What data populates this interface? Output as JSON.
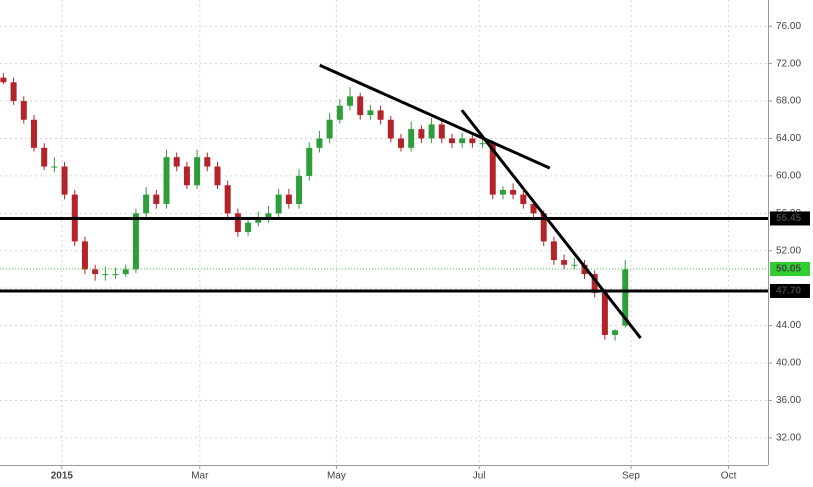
{
  "chart_data": {
    "type": "candlestick",
    "x": [
      0,
      3,
      6,
      9,
      12,
      15,
      18,
      21,
      24,
      27,
      30,
      33,
      36,
      39,
      42,
      45,
      48,
      51,
      54,
      57,
      60,
      63,
      66,
      69,
      72,
      75,
      78,
      81,
      84,
      87,
      90,
      93,
      96,
      99,
      102,
      105,
      108,
      111,
      114,
      117,
      120,
      123,
      126,
      129,
      132,
      135,
      138,
      141,
      144,
      147,
      150,
      153,
      156,
      159,
      162,
      165,
      168,
      171,
      174,
      177,
      180,
      183
    ],
    "open": [
      70.5,
      70,
      68,
      66,
      63,
      61,
      61,
      58,
      53,
      50,
      49.5,
      49.5,
      49.5,
      50,
      56,
      58,
      57,
      62,
      61,
      59,
      62,
      61,
      59,
      56,
      54,
      55,
      55.5,
      56,
      58,
      57,
      60,
      63,
      64,
      66,
      67.5,
      68.5,
      66.5,
      67,
      66,
      64,
      63,
      65,
      64,
      65.5,
      64,
      63.5,
      64,
      63.5,
      63.5,
      58,
      58.5,
      58,
      57,
      56,
      53,
      51,
      50.5,
      50.5,
      49.5,
      47.5,
      43,
      44
    ],
    "high": [
      71,
      70.5,
      68.5,
      66.5,
      63.5,
      62,
      61.5,
      58.5,
      53.5,
      50.5,
      50.3,
      50.2,
      50.5,
      56.5,
      58.8,
      58.5,
      62.8,
      62.5,
      61.5,
      62.8,
      62.5,
      61.5,
      59.5,
      56.5,
      55.5,
      56.2,
      56.8,
      58.6,
      58.6,
      60.7,
      63.6,
      64.8,
      66.7,
      68.2,
      69.5,
      68.9,
      67.6,
      67.5,
      66.4,
      64.5,
      65.8,
      65.4,
      66.2,
      65.9,
      64.5,
      64.6,
      64.5,
      64.2,
      63.8,
      58.9,
      59.2,
      58.4,
      57.5,
      56.3,
      53.5,
      51.6,
      51.2,
      51,
      49.9,
      47.9,
      43.6,
      51
    ],
    "low": [
      69.8,
      67.6,
      65.6,
      62.6,
      60.6,
      60.4,
      57.5,
      52.5,
      49.5,
      48.8,
      48.8,
      49,
      49.2,
      49.6,
      55.6,
      56.5,
      56.5,
      60.5,
      58.6,
      58.6,
      60.5,
      58.6,
      55.5,
      53.5,
      53.6,
      54.6,
      55,
      55.5,
      56.5,
      56.5,
      59.5,
      62.5,
      63.5,
      65.6,
      67,
      66,
      66,
      65.5,
      63.6,
      62.6,
      62.6,
      63.5,
      63.5,
      63.5,
      63,
      63,
      63,
      63,
      57.5,
      57.5,
      57.5,
      56.5,
      55.5,
      52.5,
      50.5,
      50,
      50,
      49,
      47,
      42.5,
      42.4,
      43.8
    ],
    "close": [
      70,
      68,
      66,
      63,
      61,
      61,
      58,
      53,
      50,
      49.5,
      49.5,
      49.5,
      50,
      56,
      58,
      57,
      62,
      61,
      59,
      62,
      61,
      59,
      56,
      54,
      55,
      55.5,
      56,
      58,
      57,
      60,
      63,
      64,
      66,
      67.5,
      68.5,
      66.5,
      67,
      66,
      64,
      63,
      65,
      64,
      65.5,
      64,
      63.5,
      64,
      63.5,
      63.5,
      58,
      58.5,
      58,
      57,
      56,
      53,
      51,
      50.5,
      50.5,
      49.5,
      47.5,
      43,
      43.5,
      50
    ],
    "up_color": "#2e9e3a",
    "down_color": "#b3232a",
    "xlim": [
      -1,
      225
    ],
    "xticks": [
      {
        "value": 17.2,
        "label": "2015"
      },
      {
        "value": 57.8,
        "label": "Mar"
      },
      {
        "value": 98,
        "label": "May"
      },
      {
        "value": 140,
        "label": "Jul"
      },
      {
        "value": 184.7,
        "label": "Sep"
      },
      {
        "value": 213.4,
        "label": "Oct"
      }
    ],
    "ylim": [
      29.1,
      78.8
    ],
    "yticks": [
      {
        "value": 32,
        "label": "32.00"
      },
      {
        "value": 36,
        "label": "36.00"
      },
      {
        "value": 40,
        "label": "40.00"
      },
      {
        "value": 44,
        "label": "44.00"
      },
      {
        "value": 48,
        "label": "48.00"
      },
      {
        "value": 52,
        "label": "52.00"
      },
      {
        "value": 56,
        "label": "56.00"
      },
      {
        "value": 60,
        "label": "60.00"
      },
      {
        "value": 64,
        "label": "64.00"
      },
      {
        "value": 68,
        "label": "68.00"
      },
      {
        "value": 72,
        "label": "72.00"
      },
      {
        "value": 76,
        "label": "76.00"
      }
    ],
    "grid": true,
    "levels": [
      {
        "value": 55.45,
        "label": "55.45",
        "color": "#000000",
        "style": "solid"
      },
      {
        "value": 47.7,
        "label": "47.70",
        "color": "#000000",
        "style": "solid"
      },
      {
        "value": 50.05,
        "label": "50.05",
        "color": "#2fcf2f",
        "style": "dotted"
      }
    ],
    "trendlines": [
      {
        "x": [
          93.1,
          160.8
        ],
        "y": [
          71.83,
          60.83
        ]
      },
      {
        "x": [
          134.9,
          187.5
        ],
        "y": [
          67.03,
          42.67
        ]
      }
    ]
  }
}
